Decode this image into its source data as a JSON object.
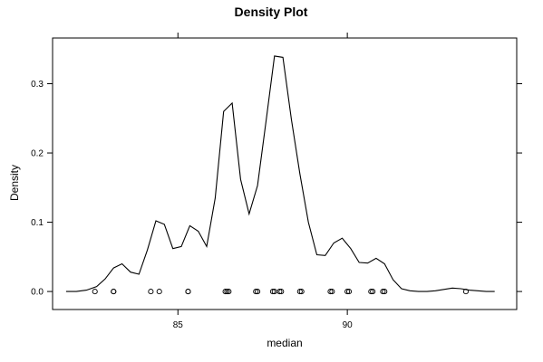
{
  "chart_data": {
    "type": "line",
    "title": "Density Plot",
    "xlabel": "median",
    "ylabel": "Density",
    "xlim": [
      81.3,
      95.0
    ],
    "ylim": [
      -0.026,
      0.366
    ],
    "x_ticks": [
      85,
      90
    ],
    "x_tick_labels": [
      "85",
      "90"
    ],
    "y_ticks": [
      0.0,
      0.1,
      0.2,
      0.3
    ],
    "y_tick_labels": [
      "0.0",
      "0.1",
      "0.2",
      "0.3"
    ],
    "grid": false,
    "legend": "none",
    "line_color": "#000000",
    "series": [
      {
        "x": [
          81.7,
          82.0,
          82.3,
          82.6,
          82.85,
          83.1,
          83.35,
          83.6,
          83.85,
          84.1,
          84.35,
          84.6,
          84.85,
          85.1,
          85.35,
          85.6,
          85.85,
          86.1,
          86.35,
          86.6,
          86.85,
          87.1,
          87.35,
          87.6,
          87.85,
          88.1,
          88.35,
          88.6,
          88.85,
          89.1,
          89.35,
          89.6,
          89.85,
          90.1,
          90.35,
          90.6,
          90.85,
          91.1,
          91.35,
          91.6,
          91.85,
          92.1,
          92.35,
          92.6,
          92.85,
          93.1,
          93.35,
          93.6,
          93.85,
          94.1,
          94.35
        ],
        "y": [
          0.0,
          0.0,
          0.002,
          0.007,
          0.018,
          0.034,
          0.04,
          0.028,
          0.025,
          0.06,
          0.102,
          0.097,
          0.062,
          0.065,
          0.095,
          0.087,
          0.065,
          0.135,
          0.26,
          0.272,
          0.162,
          0.112,
          0.153,
          0.245,
          0.34,
          0.338,
          0.248,
          0.17,
          0.1,
          0.053,
          0.052,
          0.07,
          0.077,
          0.062,
          0.042,
          0.041,
          0.048,
          0.04,
          0.017,
          0.004,
          0.001,
          0.0,
          0.0,
          0.001,
          0.003,
          0.005,
          0.004,
          0.002,
          0.001,
          0.0,
          0.0
        ]
      }
    ],
    "rug": [
      82.55,
      83.1,
      83.1,
      84.2,
      84.45,
      85.3,
      85.3,
      86.4,
      86.45,
      86.5,
      87.3,
      87.35,
      87.8,
      87.85,
      88.0,
      88.05,
      88.6,
      88.65,
      89.5,
      89.55,
      90.0,
      90.05,
      90.7,
      90.75,
      91.05,
      91.1,
      93.5
    ]
  }
}
